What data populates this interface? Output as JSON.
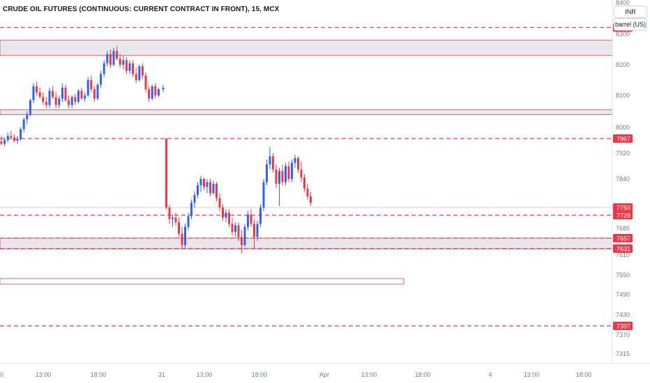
{
  "header": {
    "title": "CRUDE OIL FUTURES (CONTINUOUS: CURRENT CONTRACT IN FRONT), 15, MCX"
  },
  "units": {
    "currency": "INR",
    "volume_unit": "barrel (US)"
  },
  "colors": {
    "up": "#2962ff",
    "down": "#f23645",
    "zone_fill": "#e7e7ec",
    "label_bg": "#f23645",
    "axis_text": "#787b86"
  },
  "chart_data": {
    "type": "candlestick",
    "yaxis_ticks": [
      8400,
      8300,
      8200,
      8100,
      8000,
      7920,
      7840,
      7685,
      7610,
      7550,
      7490,
      7430,
      7370,
      7315
    ],
    "xaxis_ticks": [
      "0",
      "13:00",
      "18:00",
      "31",
      "13:00",
      "18:00",
      "Apr",
      "13:00",
      "18:00",
      "4",
      "13:00",
      "18:00"
    ],
    "price_labels": [
      "7967",
      "7750",
      "7728",
      "7657",
      "7631",
      "7397"
    ],
    "price_levels": {
      "dashed": [
        8321,
        7967,
        7728,
        7657,
        7631,
        7397
      ],
      "zones": [
        [
          8230,
          8280
        ],
        [
          8040,
          8055
        ],
        [
          7630,
          7657
        ]
      ],
      "thin_solid": [
        7750
      ]
    },
    "candles": [
      {
        "o": 7958,
        "h": 7975,
        "l": 7945,
        "c": 7950
      },
      {
        "o": 7950,
        "h": 7970,
        "l": 7942,
        "c": 7962
      },
      {
        "o": 7962,
        "h": 7985,
        "l": 7955,
        "c": 7975
      },
      {
        "o": 7975,
        "h": 7990,
        "l": 7965,
        "c": 7970
      },
      {
        "o": 7970,
        "h": 7980,
        "l": 7955,
        "c": 7960
      },
      {
        "o": 7960,
        "h": 7975,
        "l": 7950,
        "c": 7965
      },
      {
        "o": 7965,
        "h": 8000,
        "l": 7960,
        "c": 7995
      },
      {
        "o": 7995,
        "h": 8030,
        "l": 7985,
        "c": 8025
      },
      {
        "o": 8025,
        "h": 8050,
        "l": 8010,
        "c": 8040
      },
      {
        "o": 8040,
        "h": 8090,
        "l": 8035,
        "c": 8085
      },
      {
        "o": 8085,
        "h": 8140,
        "l": 8075,
        "c": 8130
      },
      {
        "o": 8130,
        "h": 8145,
        "l": 8100,
        "c": 8110
      },
      {
        "o": 8110,
        "h": 8125,
        "l": 8090,
        "c": 8095
      },
      {
        "o": 8095,
        "h": 8110,
        "l": 8070,
        "c": 8080
      },
      {
        "o": 8080,
        "h": 8095,
        "l": 8060,
        "c": 8070
      },
      {
        "o": 8070,
        "h": 8125,
        "l": 8060,
        "c": 8115
      },
      {
        "o": 8115,
        "h": 8130,
        "l": 8090,
        "c": 8095
      },
      {
        "o": 8095,
        "h": 8110,
        "l": 8060,
        "c": 8070
      },
      {
        "o": 8070,
        "h": 8100,
        "l": 8060,
        "c": 8090
      },
      {
        "o": 8090,
        "h": 8140,
        "l": 8080,
        "c": 8125
      },
      {
        "o": 8125,
        "h": 8135,
        "l": 8080,
        "c": 8085
      },
      {
        "o": 8085,
        "h": 8100,
        "l": 8060,
        "c": 8070
      },
      {
        "o": 8070,
        "h": 8100,
        "l": 8060,
        "c": 8095
      },
      {
        "o": 8095,
        "h": 8105,
        "l": 8070,
        "c": 8080
      },
      {
        "o": 8080,
        "h": 8120,
        "l": 8075,
        "c": 8115
      },
      {
        "o": 8115,
        "h": 8125,
        "l": 8085,
        "c": 8090
      },
      {
        "o": 8090,
        "h": 8110,
        "l": 8080,
        "c": 8100
      },
      {
        "o": 8100,
        "h": 8160,
        "l": 8095,
        "c": 8150
      },
      {
        "o": 8150,
        "h": 8165,
        "l": 8110,
        "c": 8120
      },
      {
        "o": 8120,
        "h": 8130,
        "l": 8080,
        "c": 8090
      },
      {
        "o": 8090,
        "h": 8140,
        "l": 8085,
        "c": 8135
      },
      {
        "o": 8135,
        "h": 8180,
        "l": 8125,
        "c": 8170
      },
      {
        "o": 8170,
        "h": 8215,
        "l": 8160,
        "c": 8205
      },
      {
        "o": 8205,
        "h": 8245,
        "l": 8195,
        "c": 8235
      },
      {
        "o": 8235,
        "h": 8250,
        "l": 8190,
        "c": 8200
      },
      {
        "o": 8200,
        "h": 8255,
        "l": 8195,
        "c": 8245
      },
      {
        "o": 8245,
        "h": 8260,
        "l": 8215,
        "c": 8220
      },
      {
        "o": 8220,
        "h": 8235,
        "l": 8190,
        "c": 8200
      },
      {
        "o": 8200,
        "h": 8230,
        "l": 8185,
        "c": 8215
      },
      {
        "o": 8215,
        "h": 8225,
        "l": 8170,
        "c": 8180
      },
      {
        "o": 8180,
        "h": 8215,
        "l": 8170,
        "c": 8205
      },
      {
        "o": 8205,
        "h": 8215,
        "l": 8160,
        "c": 8170
      },
      {
        "o": 8170,
        "h": 8190,
        "l": 8140,
        "c": 8150
      },
      {
        "o": 8150,
        "h": 8200,
        "l": 8145,
        "c": 8195
      },
      {
        "o": 8195,
        "h": 8205,
        "l": 8155,
        "c": 8165
      },
      {
        "o": 8165,
        "h": 8175,
        "l": 8110,
        "c": 8120
      },
      {
        "o": 8120,
        "h": 8130,
        "l": 8080,
        "c": 8090
      },
      {
        "o": 8090,
        "h": 8135,
        "l": 8085,
        "c": 8130
      },
      {
        "o": 8130,
        "h": 8140,
        "l": 8090,
        "c": 8100
      },
      {
        "o": 8100,
        "h": 8125,
        "l": 8095,
        "c": 8120
      },
      {
        "o": 8120,
        "h": 8135,
        "l": 8110,
        "c": 8125
      },
      {
        "o": 7967,
        "h": 7967,
        "l": 7745,
        "c": 7750
      },
      {
        "o": 7750,
        "h": 7760,
        "l": 7700,
        "c": 7715
      },
      {
        "o": 7715,
        "h": 7730,
        "l": 7690,
        "c": 7720
      },
      {
        "o": 7720,
        "h": 7735,
        "l": 7695,
        "c": 7705
      },
      {
        "o": 7705,
        "h": 7720,
        "l": 7660,
        "c": 7670
      },
      {
        "o": 7670,
        "h": 7690,
        "l": 7630,
        "c": 7640
      },
      {
        "o": 7640,
        "h": 7700,
        "l": 7632,
        "c": 7690
      },
      {
        "o": 7690,
        "h": 7735,
        "l": 7680,
        "c": 7725
      },
      {
        "o": 7725,
        "h": 7775,
        "l": 7715,
        "c": 7765
      },
      {
        "o": 7765,
        "h": 7800,
        "l": 7750,
        "c": 7790
      },
      {
        "o": 7790,
        "h": 7830,
        "l": 7780,
        "c": 7820
      },
      {
        "o": 7820,
        "h": 7850,
        "l": 7800,
        "c": 7840
      },
      {
        "o": 7840,
        "h": 7845,
        "l": 7805,
        "c": 7815
      },
      {
        "o": 7815,
        "h": 7840,
        "l": 7795,
        "c": 7830
      },
      {
        "o": 7830,
        "h": 7840,
        "l": 7785,
        "c": 7795
      },
      {
        "o": 7795,
        "h": 7835,
        "l": 7790,
        "c": 7825
      },
      {
        "o": 7825,
        "h": 7830,
        "l": 7770,
        "c": 7780
      },
      {
        "o": 7780,
        "h": 7795,
        "l": 7740,
        "c": 7750
      },
      {
        "o": 7750,
        "h": 7760,
        "l": 7710,
        "c": 7720
      },
      {
        "o": 7720,
        "h": 7745,
        "l": 7705,
        "c": 7735
      },
      {
        "o": 7735,
        "h": 7745,
        "l": 7690,
        "c": 7700
      },
      {
        "o": 7700,
        "h": 7720,
        "l": 7665,
        "c": 7675
      },
      {
        "o": 7675,
        "h": 7705,
        "l": 7660,
        "c": 7695
      },
      {
        "o": 7695,
        "h": 7705,
        "l": 7650,
        "c": 7660
      },
      {
        "o": 7660,
        "h": 7680,
        "l": 7615,
        "c": 7640
      },
      {
        "o": 7640,
        "h": 7700,
        "l": 7635,
        "c": 7690
      },
      {
        "o": 7690,
        "h": 7740,
        "l": 7680,
        "c": 7730
      },
      {
        "o": 7730,
        "h": 7745,
        "l": 7690,
        "c": 7700
      },
      {
        "o": 7700,
        "h": 7715,
        "l": 7630,
        "c": 7660
      },
      {
        "o": 7660,
        "h": 7710,
        "l": 7650,
        "c": 7700
      },
      {
        "o": 7700,
        "h": 7760,
        "l": 7690,
        "c": 7750
      },
      {
        "o": 7750,
        "h": 7840,
        "l": 7740,
        "c": 7830
      },
      {
        "o": 7830,
        "h": 7900,
        "l": 7820,
        "c": 7885
      },
      {
        "o": 7885,
        "h": 7940,
        "l": 7870,
        "c": 7910
      },
      {
        "o": 7910,
        "h": 7920,
        "l": 7860,
        "c": 7870
      },
      {
        "o": 7870,
        "h": 7885,
        "l": 7810,
        "c": 7825
      },
      {
        "o": 7825,
        "h": 7875,
        "l": 7755,
        "c": 7865
      },
      {
        "o": 7865,
        "h": 7885,
        "l": 7820,
        "c": 7830
      },
      {
        "o": 7830,
        "h": 7890,
        "l": 7820,
        "c": 7880
      },
      {
        "o": 7880,
        "h": 7895,
        "l": 7830,
        "c": 7840
      },
      {
        "o": 7840,
        "h": 7900,
        "l": 7830,
        "c": 7890
      },
      {
        "o": 7890,
        "h": 7915,
        "l": 7875,
        "c": 7905
      },
      {
        "o": 7905,
        "h": 7910,
        "l": 7860,
        "c": 7870
      },
      {
        "o": 7870,
        "h": 7895,
        "l": 7830,
        "c": 7845
      },
      {
        "o": 7845,
        "h": 7855,
        "l": 7800,
        "c": 7810
      },
      {
        "o": 7810,
        "h": 7825,
        "l": 7775,
        "c": 7785
      },
      {
        "o": 7785,
        "h": 7800,
        "l": 7755,
        "c": 7765
      }
    ],
    "candle_groups": [
      {
        "start": 0,
        "count": 50,
        "x0": 0,
        "step": 4.6
      },
      {
        "start": 50,
        "count": 50,
        "x0": 232,
        "step": 4.5
      }
    ]
  }
}
